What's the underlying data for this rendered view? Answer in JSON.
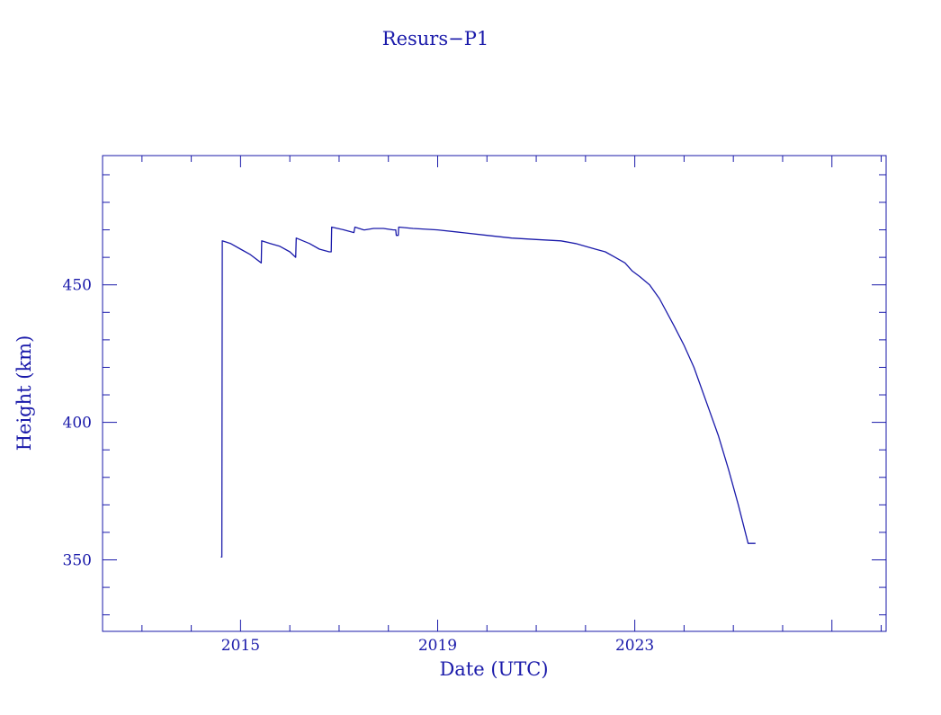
{
  "chart_data": {
    "type": "line",
    "title": "Resurs−P1",
    "xlabel": "Date (UTC)",
    "ylabel": "Height (km)",
    "xlim": [
      2012.2,
      2028.1
    ],
    "ylim": [
      324,
      497
    ],
    "x_tick_labels": [
      "2015",
      "2019",
      "2023"
    ],
    "y_tick_labels": [
      "350",
      "400",
      "450"
    ],
    "line_color": "#1a1aaa",
    "grid": false,
    "series": [
      {
        "x": [
          2014.6,
          2014.62,
          2014.63,
          2014.8,
          2015.0,
          2015.2,
          2015.42,
          2015.43,
          2015.6,
          2015.8,
          2016.0,
          2016.12,
          2016.13,
          2016.4,
          2016.6,
          2016.8,
          2016.84,
          2016.85,
          2017.1,
          2017.3,
          2017.32,
          2017.5,
          2017.52,
          2017.7,
          2017.7,
          2017.9,
          2018.1,
          2018.15,
          2018.16,
          2018.2,
          2018.21,
          2018.5,
          2019.0,
          2019.5,
          2020.0,
          2020.5,
          2021.0,
          2021.5,
          2021.8,
          2022.0,
          2022.2,
          2022.4,
          2022.6,
          2022.8,
          2022.95,
          2023.1,
          2023.3,
          2023.5,
          2023.8,
          2024.0,
          2024.2,
          2024.5,
          2024.7,
          2024.9,
          2025.1,
          2025.3,
          2025.45
        ],
        "y": [
          351,
          351,
          466,
          465,
          463,
          461,
          458,
          466,
          465,
          464,
          462,
          460,
          467,
          465,
          463,
          462,
          462,
          471,
          470,
          469,
          471,
          470,
          470,
          470.5,
          470.5,
          470.5,
          470,
          470,
          468,
          468,
          471,
          470.5,
          470,
          469,
          468,
          467,
          466.5,
          466,
          465,
          464,
          463,
          462,
          460,
          458,
          455,
          453,
          450,
          445,
          435,
          428,
          420,
          405,
          395,
          383,
          370,
          356,
          356
        ]
      }
    ]
  }
}
